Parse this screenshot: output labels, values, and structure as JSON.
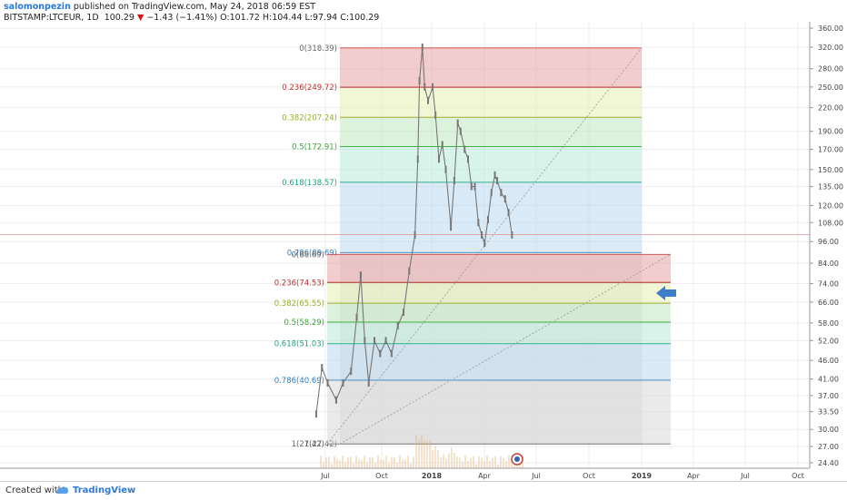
{
  "header": {
    "author": "salomonpezin",
    "published": "published on TradingView.com, May 24, 2018 06:59 EST",
    "symbol": "BITSTAMP:LTCEUR, 1D",
    "last": "100.29",
    "change": "−1.43 (−1.41%)",
    "open_label": "O:",
    "open": "101.72",
    "high_label": "H:",
    "high": "104.44",
    "low_label": "L:",
    "low": "97.94",
    "close_label": "C:",
    "close": "100.29"
  },
  "footer": {
    "created_with": "Created with",
    "brand": "TradingView"
  },
  "colors": {
    "fib_red": "#e8a4a4",
    "fib_yellow": "#e6eeb0",
    "fib_green": "#bfe8bf",
    "fib_teal": "#b8ead8",
    "fib_blue": "#bcd8ee",
    "fib_gray": "#d8d8d8",
    "candle": "#777777",
    "arrow": "#3d7fc8"
  },
  "chart_data": {
    "type": "line",
    "y_scale": "log",
    "y_ticks": [
      "360.00",
      "320.00",
      "280.00",
      "250.00",
      "220.00",
      "190.00",
      "170.00",
      "150.00",
      "135.00",
      "120.00",
      "108.00",
      "96.00",
      "84.00",
      "74.00",
      "66.00",
      "58.00",
      "52.00",
      "46.00",
      "41.00",
      "37.00",
      "33.50",
      "30.00",
      "27.00",
      "24.40"
    ],
    "x_ticks": [
      "Jul",
      "Oct",
      "2018",
      "Apr",
      "Jul",
      "Oct",
      "2019",
      "Apr",
      "Jul",
      "Oct"
    ],
    "fib_upper": [
      {
        "label": "0(318.39)",
        "price": 318.39
      },
      {
        "label": "0.236(249.72)",
        "price": 249.72
      },
      {
        "label": "0.382(207.24)",
        "price": 207.24
      },
      {
        "label": "0.5(172.91)",
        "price": 172.91
      },
      {
        "label": "0.618(138.57)",
        "price": 138.57
      },
      {
        "label": "0.786(89.69)",
        "price": 89.69
      },
      {
        "label": "1(27.42)",
        "price": 27.42
      }
    ],
    "fib_lower": [
      {
        "label": "0(88.69)",
        "price": 88.69
      },
      {
        "label": "0.236(74.53)",
        "price": 74.53
      },
      {
        "label": "0.382(65.55)",
        "price": 65.55
      },
      {
        "label": "0.5(58.29)",
        "price": 58.29
      },
      {
        "label": "0.618(51.03)",
        "price": 51.03
      },
      {
        "label": "0.786(40.69)",
        "price": 40.69
      },
      {
        "label": "1(27.42)",
        "price": 27.42
      }
    ],
    "series": [
      {
        "values": [
          [
            "Jun 15",
            33
          ],
          [
            "Jun 25",
            44
          ],
          [
            "Jul 5",
            40
          ],
          [
            "Jul 20",
            36
          ],
          [
            "Aug 1",
            40
          ],
          [
            "Aug 15",
            43
          ],
          [
            "Aug 25",
            60
          ],
          [
            "Sep 1",
            78
          ],
          [
            "Sep 8",
            52
          ],
          [
            "Sep 15",
            40
          ],
          [
            "Sep 25",
            52
          ],
          [
            "Oct 5",
            48
          ],
          [
            "Oct 15",
            52
          ],
          [
            "Oct 25",
            48
          ],
          [
            "Nov 5",
            57
          ],
          [
            "Nov 15",
            62
          ],
          [
            "Nov 25",
            80
          ],
          [
            "Dec 5",
            100
          ],
          [
            "Dec 10",
            160
          ],
          [
            "Dec 13",
            260
          ],
          [
            "Dec 18",
            320
          ],
          [
            "Dec 22",
            250
          ],
          [
            "Dec 28",
            230
          ],
          [
            "Jan 5",
            250
          ],
          [
            "Jan 10",
            210
          ],
          [
            "Jan 16",
            160
          ],
          [
            "Jan 22",
            175
          ],
          [
            "Jan 28",
            150
          ],
          [
            "Feb 6",
            105
          ],
          [
            "Feb 12",
            140
          ],
          [
            "Feb 18",
            200
          ],
          [
            "Feb 23",
            190
          ],
          [
            "Mar 2",
            170
          ],
          [
            "Mar 8",
            160
          ],
          [
            "Mar 14",
            135
          ],
          [
            "Mar 20",
            135
          ],
          [
            "Mar 26",
            108
          ],
          [
            "Apr 1",
            100
          ],
          [
            "Apr 6",
            95
          ],
          [
            "Apr 12",
            110
          ],
          [
            "Apr 18",
            130
          ],
          [
            "Apr 24",
            145
          ],
          [
            "Apr 28",
            140
          ],
          [
            "May 5",
            130
          ],
          [
            "May 12",
            125
          ],
          [
            "May 18",
            115
          ],
          [
            "May 24",
            100
          ]
        ]
      }
    ]
  }
}
